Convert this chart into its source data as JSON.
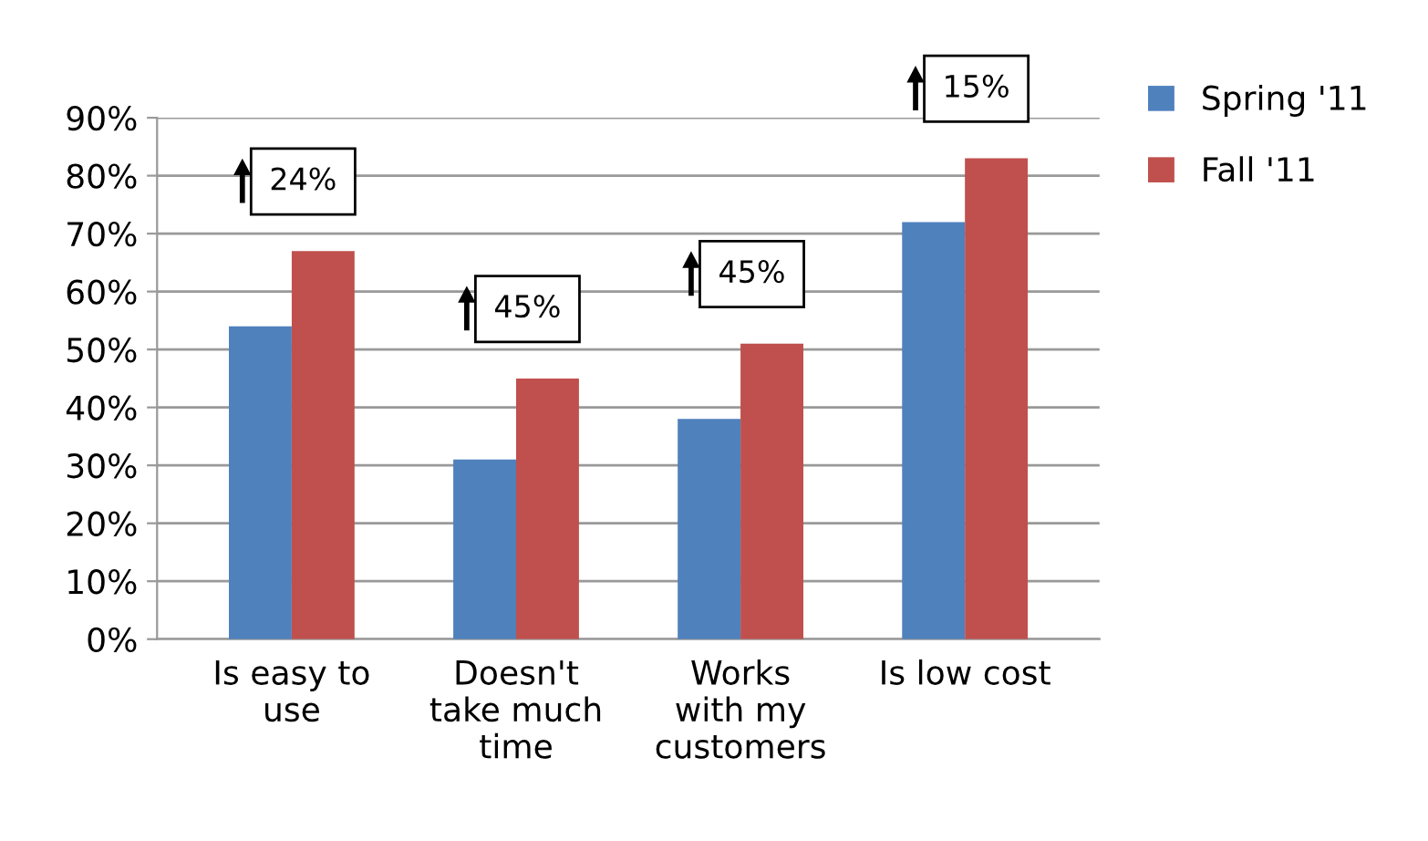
{
  "chart_data": {
    "type": "bar",
    "categories": [
      "Is easy to\nuse",
      "Doesn't\ntake much\ntime",
      "Works\nwith my\ncustomers",
      "Is low cost"
    ],
    "series": [
      {
        "name": "Spring '11",
        "color": "#4f81bd",
        "values": [
          54,
          31,
          38,
          72
        ]
      },
      {
        "name": "Fall '11",
        "color": "#c0504d",
        "values": [
          67,
          45,
          51,
          83
        ]
      }
    ],
    "ylim": [
      0,
      90
    ],
    "yticks": [
      {
        "value": 0,
        "label": "0%"
      },
      {
        "value": 10,
        "label": "10%"
      },
      {
        "value": 20,
        "label": "20%"
      },
      {
        "value": 30,
        "label": "30%"
      },
      {
        "value": 40,
        "label": "40%"
      },
      {
        "value": 50,
        "label": "50%"
      },
      {
        "value": 60,
        "label": "60%"
      },
      {
        "value": 70,
        "label": "70%"
      },
      {
        "value": 80,
        "label": "80%"
      },
      {
        "value": 90,
        "label": "90%"
      }
    ],
    "annotations": [
      "24%",
      "45%",
      "45%",
      "15%"
    ],
    "grid": "y",
    "legend": "right"
  }
}
